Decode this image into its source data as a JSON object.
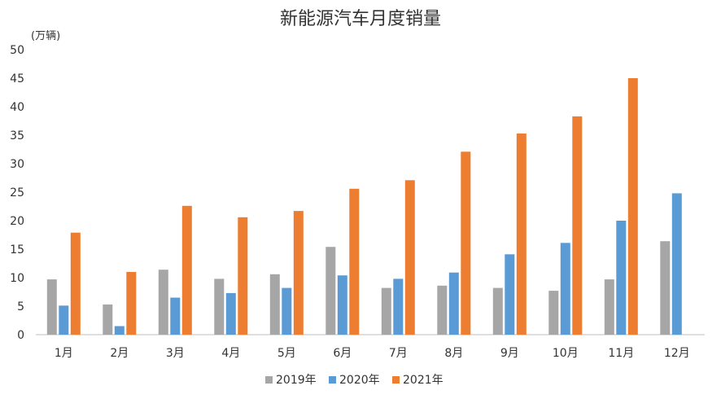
{
  "chart_data": {
    "type": "bar",
    "title": "新能源汽车月度销量",
    "ylabel": "(万辆)",
    "ylim": [
      0,
      50
    ],
    "yticks": [
      "0",
      "5",
      "10",
      "15",
      "20",
      "25",
      "30",
      "35",
      "40",
      "45",
      "50"
    ],
    "categories": [
      "1月",
      "2月",
      "3月",
      "4月",
      "5月",
      "6月",
      "7月",
      "8月",
      "9月",
      "10月",
      "11月",
      "12月"
    ],
    "series": [
      {
        "name": "2019年",
        "color": "#a6a6a6",
        "values": [
          9.7,
          5.3,
          11.4,
          9.8,
          10.6,
          15.4,
          8.2,
          8.6,
          8.2,
          7.7,
          9.7,
          16.4
        ]
      },
      {
        "name": "2020年",
        "color": "#5b9bd5",
        "values": [
          5.1,
          1.5,
          6.5,
          7.3,
          8.2,
          10.4,
          9.8,
          10.9,
          14.1,
          16.1,
          20.0,
          24.8
        ]
      },
      {
        "name": "2021年",
        "color": "#ed7d31",
        "values": [
          17.9,
          11.0,
          22.6,
          20.6,
          21.7,
          25.6,
          27.1,
          32.1,
          35.3,
          38.3,
          45.0,
          null
        ]
      }
    ],
    "legend": {
      "position": "bottom"
    },
    "grid": false
  }
}
